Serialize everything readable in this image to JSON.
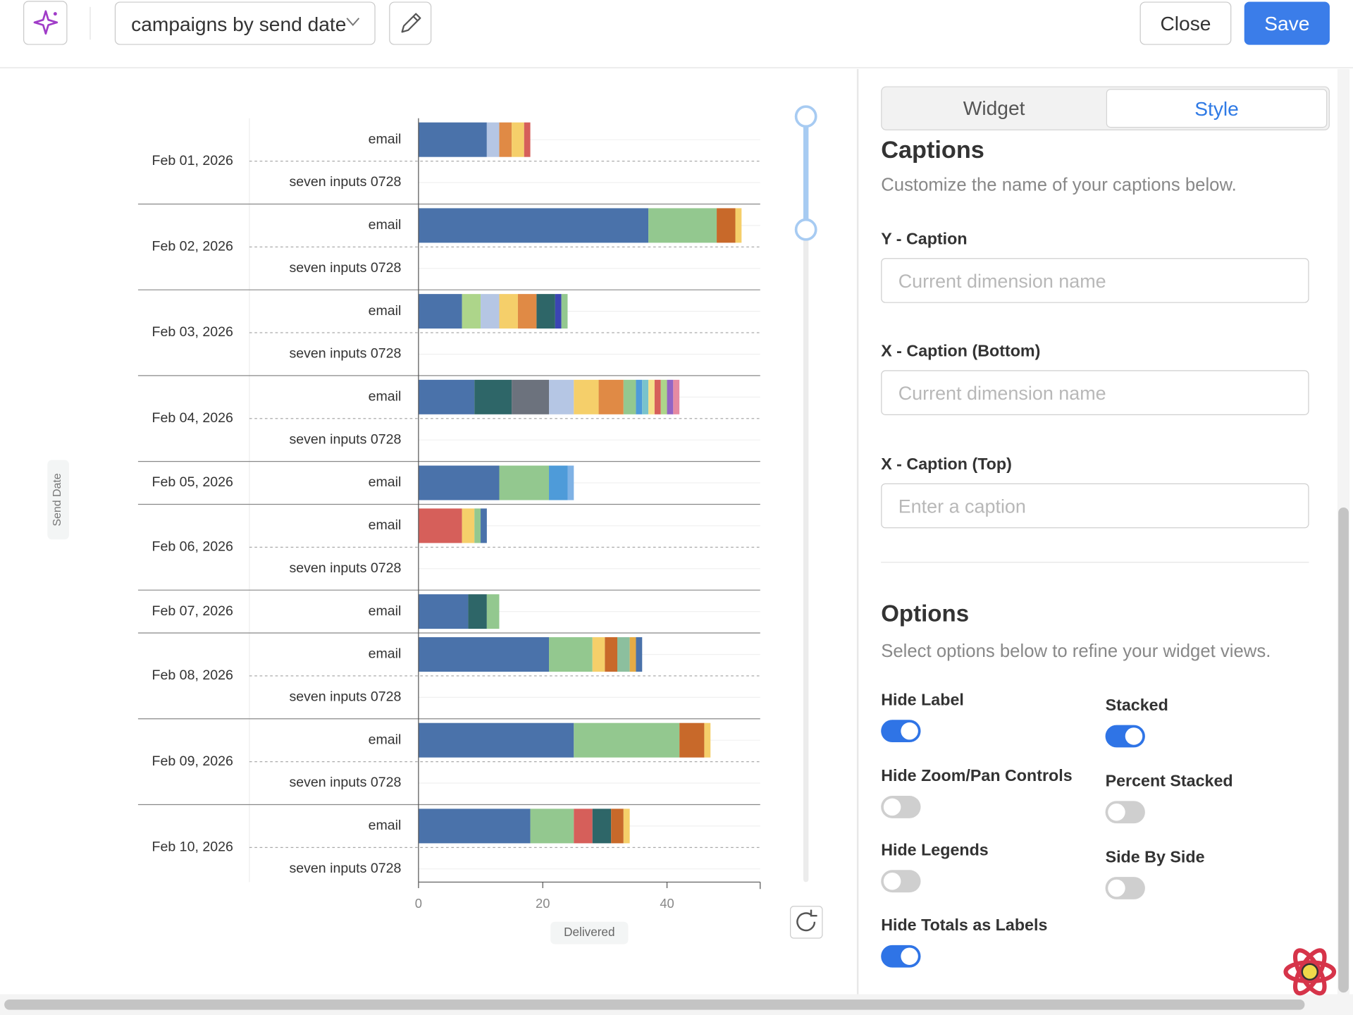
{
  "toolbar": {
    "title": "campaigns by send date",
    "close": "Close",
    "save": "Save"
  },
  "chart_data": {
    "type": "stacked-horizontal-bar",
    "y_label": "Send Date",
    "x_label": "Delivered",
    "xlim": [
      0,
      55
    ],
    "xticks": [
      0,
      20,
      40
    ],
    "groups": [
      {
        "label": "Feb 01, 2026",
        "rows": [
          {
            "label": "email",
            "segments": [
              {
                "value": 11,
                "color": "#4a72aa"
              },
              {
                "value": 2,
                "color": "#b5c6e4"
              },
              {
                "value": 2,
                "color": "#e08a45"
              },
              {
                "value": 2,
                "color": "#f5cf6a"
              },
              {
                "value": 1,
                "color": "#d65f5a"
              }
            ]
          },
          {
            "label": "seven inputs 0728",
            "segments": []
          }
        ]
      },
      {
        "label": "Feb 02, 2026",
        "rows": [
          {
            "label": "email",
            "segments": [
              {
                "value": 37,
                "color": "#4a72aa"
              },
              {
                "value": 11,
                "color": "#93c88f"
              },
              {
                "value": 3,
                "color": "#c8692a"
              },
              {
                "value": 1,
                "color": "#f5cf6a"
              }
            ]
          },
          {
            "label": "seven inputs 0728",
            "segments": []
          }
        ]
      },
      {
        "label": "Feb 03, 2026",
        "rows": [
          {
            "label": "email",
            "segments": [
              {
                "value": 7,
                "color": "#4a72aa"
              },
              {
                "value": 3,
                "color": "#add58a"
              },
              {
                "value": 3,
                "color": "#b5c6e4"
              },
              {
                "value": 3,
                "color": "#f5cf6a"
              },
              {
                "value": 3,
                "color": "#e08a45"
              },
              {
                "value": 3,
                "color": "#2e6668"
              },
              {
                "value": 1,
                "color": "#3b45b3"
              },
              {
                "value": 1,
                "color": "#93c88f"
              }
            ]
          },
          {
            "label": "seven inputs 0728",
            "segments": []
          }
        ]
      },
      {
        "label": "Feb 04, 2026",
        "rows": [
          {
            "label": "email",
            "segments": [
              {
                "value": 9,
                "color": "#4a72aa"
              },
              {
                "value": 6,
                "color": "#2e6668"
              },
              {
                "value": 6,
                "color": "#6c727d"
              },
              {
                "value": 4,
                "color": "#b5c6e4"
              },
              {
                "value": 4,
                "color": "#f5cf6a"
              },
              {
                "value": 4,
                "color": "#e08a45"
              },
              {
                "value": 2,
                "color": "#93c88f"
              },
              {
                "value": 1,
                "color": "#4e9bd9"
              },
              {
                "value": 1,
                "color": "#79c3cc"
              },
              {
                "value": 1,
                "color": "#f5e08a"
              },
              {
                "value": 1,
                "color": "#d65f5a"
              },
              {
                "value": 1,
                "color": "#add58a"
              },
              {
                "value": 1,
                "color": "#9265c4"
              },
              {
                "value": 1,
                "color": "#e58aa2"
              }
            ]
          },
          {
            "label": "seven inputs 0728",
            "segments": []
          }
        ]
      },
      {
        "label": "Feb 05, 2026",
        "rows": [
          {
            "label": "email",
            "segments": [
              {
                "value": 13,
                "color": "#4a72aa"
              },
              {
                "value": 8,
                "color": "#93c88f"
              },
              {
                "value": 3,
                "color": "#4e9bd9"
              },
              {
                "value": 1,
                "color": "#7fb2e5"
              }
            ]
          }
        ]
      },
      {
        "label": "Feb 06, 2026",
        "rows": [
          {
            "label": "email",
            "segments": [
              {
                "value": 7,
                "color": "#d65f5a"
              },
              {
                "value": 2,
                "color": "#f5cf6a"
              },
              {
                "value": 1,
                "color": "#93c88f"
              },
              {
                "value": 1,
                "color": "#4a72aa"
              }
            ]
          },
          {
            "label": "seven inputs 0728",
            "segments": []
          }
        ]
      },
      {
        "label": "Feb 07, 2026",
        "rows": [
          {
            "label": "email",
            "segments": [
              {
                "value": 8,
                "color": "#4a72aa"
              },
              {
                "value": 3,
                "color": "#2e6668"
              },
              {
                "value": 2,
                "color": "#93c88f"
              }
            ]
          }
        ]
      },
      {
        "label": "Feb 08, 2026",
        "rows": [
          {
            "label": "email",
            "segments": [
              {
                "value": 21,
                "color": "#4a72aa"
              },
              {
                "value": 7,
                "color": "#93c88f"
              },
              {
                "value": 2,
                "color": "#f5cf6a"
              },
              {
                "value": 2,
                "color": "#c8692a"
              },
              {
                "value": 2,
                "color": "#8cbf9e"
              },
              {
                "value": 1,
                "color": "#e5ab45"
              },
              {
                "value": 1,
                "color": "#4a72aa"
              }
            ]
          },
          {
            "label": "seven inputs 0728",
            "segments": []
          }
        ]
      },
      {
        "label": "Feb 09, 2026",
        "rows": [
          {
            "label": "email",
            "segments": [
              {
                "value": 25,
                "color": "#4a72aa"
              },
              {
                "value": 17,
                "color": "#93c88f"
              },
              {
                "value": 4,
                "color": "#c8692a"
              },
              {
                "value": 1,
                "color": "#f5cf6a"
              }
            ]
          },
          {
            "label": "seven inputs 0728",
            "segments": []
          }
        ]
      },
      {
        "label": "Feb 10, 2026",
        "rows": [
          {
            "label": "email",
            "segments": [
              {
                "value": 18,
                "color": "#4a72aa"
              },
              {
                "value": 7,
                "color": "#93c88f"
              },
              {
                "value": 3,
                "color": "#d65f5a"
              },
              {
                "value": 3,
                "color": "#2e6668"
              },
              {
                "value": 2,
                "color": "#c8692a"
              },
              {
                "value": 1,
                "color": "#f5cf6a"
              }
            ]
          },
          {
            "label": "seven inputs 0728",
            "segments": []
          }
        ]
      }
    ]
  },
  "panel": {
    "tabs": [
      {
        "label": "Widget",
        "active": false
      },
      {
        "label": "Style",
        "active": true
      }
    ],
    "captions_title": "Captions",
    "captions_desc": "Customize the name of your captions below.",
    "fields": [
      {
        "label": "Y - Caption",
        "placeholder": "Current dimension name"
      },
      {
        "label": "X - Caption (Bottom)",
        "placeholder": "Current dimension name"
      },
      {
        "label": "X - Caption (Top)",
        "placeholder": "Enter a caption"
      }
    ],
    "options_title": "Options",
    "options_desc": "Select options below to refine your widget views.",
    "toggles": [
      {
        "label": "Hide Label",
        "on": true
      },
      {
        "label": "Stacked",
        "on": true
      },
      {
        "label": "Hide Zoom/Pan Controls",
        "on": false
      },
      {
        "label": "Percent Stacked",
        "on": false
      },
      {
        "label": "Hide Legends",
        "on": false
      },
      {
        "label": "Side By Side",
        "on": false
      },
      {
        "label": "Hide Totals as Labels",
        "on": true
      }
    ]
  }
}
